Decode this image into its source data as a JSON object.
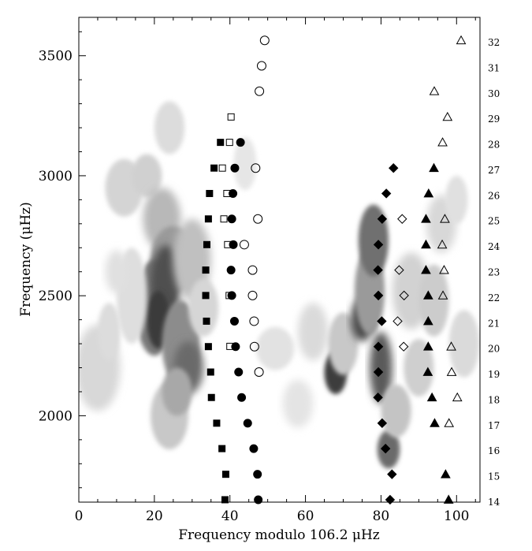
{
  "chart_data": {
    "type": "scatter",
    "title": "",
    "xlabel": "Frequency modulo 106.2 μHz",
    "ylabel": "Frequency (μHz)",
    "xlim": [
      0,
      106.2
    ],
    "ylim": [
      1640,
      3660
    ],
    "x_ticks": [
      "0",
      "20",
      "40",
      "60",
      "80",
      "100"
    ],
    "y_ticks": [
      "2000",
      "2500",
      "3000",
      "3500"
    ],
    "right_axis": {
      "label": "",
      "orders": [
        "14",
        "15",
        "16",
        "17",
        "18",
        "19",
        "20",
        "21",
        "22",
        "23",
        "24",
        "25",
        "26",
        "27",
        "28",
        "29",
        "30",
        "31",
        "32"
      ]
    },
    "background": "grayscale power density contours",
    "series": [
      {
        "marker": "filled-square",
        "color": "#000000",
        "points": [
          [
            38.7,
            1650
          ],
          [
            38.9,
            1756
          ],
          [
            37.9,
            1863
          ],
          [
            36.5,
            1969
          ],
          [
            35.1,
            2076
          ],
          [
            34.9,
            2182
          ],
          [
            34.3,
            2288
          ],
          [
            33.8,
            2394
          ],
          [
            33.6,
            2501
          ],
          [
            33.6,
            2607
          ],
          [
            33.9,
            2713
          ],
          [
            34.3,
            2820
          ],
          [
            34.6,
            2926
          ],
          [
            35.8,
            3032
          ],
          [
            37.5,
            3139
          ]
        ]
      },
      {
        "marker": "open-square",
        "color": "#000000",
        "points": [
          [
            40.0,
            2289
          ],
          [
            39.8,
            2501
          ],
          [
            39.4,
            2713
          ],
          [
            38.4,
            2820
          ],
          [
            39.2,
            2926
          ],
          [
            38.0,
            3032
          ],
          [
            39.9,
            3139
          ],
          [
            40.3,
            3245
          ]
        ]
      },
      {
        "marker": "filled-circle",
        "color": "#000000",
        "points": [
          [
            47.5,
            1650
          ],
          [
            47.3,
            1756
          ],
          [
            46.3,
            1863
          ],
          [
            44.7,
            1969
          ],
          [
            43.1,
            2076
          ],
          [
            42.3,
            2182
          ],
          [
            41.5,
            2288
          ],
          [
            41.2,
            2394
          ],
          [
            40.5,
            2501
          ],
          [
            40.3,
            2607
          ],
          [
            40.9,
            2713
          ],
          [
            40.5,
            2820
          ],
          [
            40.8,
            2926
          ],
          [
            41.3,
            3032
          ],
          [
            42.8,
            3139
          ]
        ]
      },
      {
        "marker": "open-circle",
        "color": "#000000",
        "points": [
          [
            47.7,
            2182
          ],
          [
            46.5,
            2288
          ],
          [
            46.4,
            2394
          ],
          [
            46.0,
            2501
          ],
          [
            46.0,
            2607
          ],
          [
            43.8,
            2713
          ],
          [
            47.4,
            2820
          ],
          [
            46.8,
            3032
          ],
          [
            47.8,
            3352
          ],
          [
            48.4,
            3458
          ],
          [
            49.2,
            3564
          ]
        ]
      },
      {
        "marker": "filled-diamond",
        "color": "#000000",
        "points": [
          [
            82.4,
            1650
          ],
          [
            82.9,
            1756
          ],
          [
            81.2,
            1863
          ],
          [
            80.3,
            1969
          ],
          [
            79.2,
            2076
          ],
          [
            79.3,
            2182
          ],
          [
            79.3,
            2288
          ],
          [
            80.2,
            2394
          ],
          [
            79.3,
            2501
          ],
          [
            79.2,
            2607
          ],
          [
            79.3,
            2713
          ],
          [
            80.3,
            2820
          ],
          [
            81.4,
            2926
          ],
          [
            83.3,
            3032
          ]
        ]
      },
      {
        "marker": "open-diamond",
        "color": "#000000",
        "points": [
          [
            86.0,
            2288
          ],
          [
            84.4,
            2394
          ],
          [
            86.1,
            2501
          ],
          [
            84.8,
            2607
          ],
          [
            85.6,
            2820
          ]
        ]
      },
      {
        "marker": "filled-triangle",
        "color": "#000000",
        "points": [
          [
            97.9,
            1650
          ],
          [
            97.1,
            1756
          ],
          [
            94.2,
            1969
          ],
          [
            93.5,
            2076
          ],
          [
            92.4,
            2182
          ],
          [
            92.5,
            2288
          ],
          [
            92.5,
            2394
          ],
          [
            92.5,
            2501
          ],
          [
            91.9,
            2607
          ],
          [
            91.9,
            2713
          ],
          [
            91.9,
            2820
          ],
          [
            92.6,
            2926
          ],
          [
            94.0,
            3032
          ]
        ]
      },
      {
        "marker": "open-triangle",
        "color": "#000000",
        "points": [
          [
            98.0,
            1969
          ],
          [
            100.2,
            2076
          ],
          [
            98.7,
            2182
          ],
          [
            98.6,
            2288
          ],
          [
            96.4,
            2501
          ],
          [
            96.7,
            2607
          ],
          [
            96.2,
            2713
          ],
          [
            96.9,
            2820
          ],
          [
            96.3,
            3139
          ],
          [
            97.6,
            3245
          ],
          [
            94.1,
            3352
          ],
          [
            101.2,
            3564
          ]
        ]
      }
    ]
  }
}
